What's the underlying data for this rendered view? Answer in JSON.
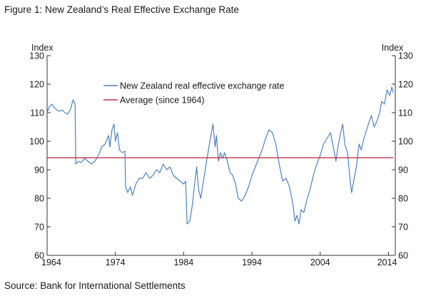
{
  "figure_title": "Figure 1: New Zealand’s Real Effective Exchange Rate",
  "source": "Source: Bank for International Settlements",
  "colors": {
    "series": "#4f81bd",
    "average": "#c0344a",
    "axis": "#333333"
  },
  "chart_data": {
    "type": "line",
    "title": "Figure 1: New Zealand’s Real Effective Exchange Rate",
    "left_axis_label": "Index",
    "right_axis_label": "Index",
    "xlim": [
      1964,
      2015
    ],
    "ylim": [
      60,
      130
    ],
    "yticks": [
      60,
      70,
      80,
      90,
      100,
      110,
      120,
      130
    ],
    "xticks": [
      1964,
      1974,
      1984,
      1994,
      2004,
      2014
    ],
    "grid": false,
    "legend_position": "top-center",
    "series": [
      {
        "name": "New Zealand real effective exchange rate",
        "points": [
          [
            1964.0,
            110
          ],
          [
            1964.3,
            112
          ],
          [
            1964.7,
            113
          ],
          [
            1965.0,
            112
          ],
          [
            1965.4,
            111
          ],
          [
            1965.8,
            110.5
          ],
          [
            1966.2,
            111
          ],
          [
            1966.6,
            110
          ],
          [
            1967.0,
            109.5
          ],
          [
            1967.4,
            111
          ],
          [
            1967.8,
            114.5
          ],
          [
            1968.1,
            113
          ],
          [
            1968.2,
            92
          ],
          [
            1968.6,
            93
          ],
          [
            1969.0,
            92.5
          ],
          [
            1969.5,
            94
          ],
          [
            1970.0,
            93
          ],
          [
            1970.5,
            92
          ],
          [
            1971.0,
            93
          ],
          [
            1971.5,
            95
          ],
          [
            1972.0,
            98
          ],
          [
            1972.5,
            99
          ],
          [
            1973.0,
            102
          ],
          [
            1973.2,
            98
          ],
          [
            1973.5,
            104
          ],
          [
            1973.8,
            106
          ],
          [
            1974.0,
            100
          ],
          [
            1974.3,
            103
          ],
          [
            1974.6,
            97
          ],
          [
            1975.0,
            96
          ],
          [
            1975.4,
            96.5
          ],
          [
            1975.5,
            84
          ],
          [
            1975.8,
            82
          ],
          [
            1976.2,
            84
          ],
          [
            1976.5,
            81
          ],
          [
            1977.0,
            85
          ],
          [
            1977.5,
            87
          ],
          [
            1978.0,
            87
          ],
          [
            1978.5,
            89
          ],
          [
            1979.0,
            87
          ],
          [
            1979.5,
            88
          ],
          [
            1980.0,
            90
          ],
          [
            1980.5,
            89
          ],
          [
            1981.0,
            92
          ],
          [
            1981.5,
            90
          ],
          [
            1982.0,
            91
          ],
          [
            1982.5,
            88
          ],
          [
            1983.0,
            87
          ],
          [
            1983.5,
            86
          ],
          [
            1984.0,
            85
          ],
          [
            1984.3,
            86
          ],
          [
            1984.5,
            71
          ],
          [
            1984.9,
            72
          ],
          [
            1985.3,
            78
          ],
          [
            1985.6,
            85
          ],
          [
            1985.9,
            91
          ],
          [
            1986.2,
            83
          ],
          [
            1986.5,
            80
          ],
          [
            1986.9,
            86
          ],
          [
            1987.3,
            92
          ],
          [
            1987.7,
            98
          ],
          [
            1988.0,
            102
          ],
          [
            1988.3,
            106
          ],
          [
            1988.6,
            98
          ],
          [
            1988.8,
            102
          ],
          [
            1989.1,
            93
          ],
          [
            1989.4,
            96
          ],
          [
            1989.7,
            94
          ],
          [
            1990.0,
            96
          ],
          [
            1990.4,
            93
          ],
          [
            1990.8,
            89
          ],
          [
            1991.2,
            88
          ],
          [
            1991.6,
            85
          ],
          [
            1992.0,
            80
          ],
          [
            1992.5,
            79
          ],
          [
            1993.0,
            81
          ],
          [
            1993.5,
            84
          ],
          [
            1994.0,
            88
          ],
          [
            1994.5,
            91
          ],
          [
            1995.0,
            94
          ],
          [
            1995.5,
            97
          ],
          [
            1996.0,
            101
          ],
          [
            1996.5,
            104
          ],
          [
            1997.0,
            103
          ],
          [
            1997.5,
            99
          ],
          [
            1998.0,
            92
          ],
          [
            1998.5,
            86
          ],
          [
            1999.0,
            87
          ],
          [
            1999.5,
            84
          ],
          [
            2000.0,
            78
          ],
          [
            2000.3,
            72
          ],
          [
            2000.6,
            74
          ],
          [
            2000.9,
            71
          ],
          [
            2001.2,
            76
          ],
          [
            2001.6,
            75
          ],
          [
            2002.0,
            79
          ],
          [
            2002.5,
            83
          ],
          [
            2003.0,
            88
          ],
          [
            2003.5,
            92
          ],
          [
            2004.0,
            95
          ],
          [
            2004.5,
            99
          ],
          [
            2005.0,
            101
          ],
          [
            2005.5,
            103
          ],
          [
            2006.0,
            97
          ],
          [
            2006.3,
            93
          ],
          [
            2006.6,
            98
          ],
          [
            2007.0,
            103
          ],
          [
            2007.3,
            106
          ],
          [
            2007.6,
            99
          ],
          [
            2008.0,
            96
          ],
          [
            2008.4,
            86
          ],
          [
            2008.6,
            82
          ],
          [
            2008.9,
            86
          ],
          [
            2009.3,
            91
          ],
          [
            2009.7,
            99
          ],
          [
            2010.0,
            97
          ],
          [
            2010.4,
            101
          ],
          [
            2010.8,
            104
          ],
          [
            2011.2,
            107
          ],
          [
            2011.5,
            109
          ],
          [
            2011.9,
            105
          ],
          [
            2012.3,
            107
          ],
          [
            2012.7,
            110
          ],
          [
            2013.0,
            114
          ],
          [
            2013.4,
            113
          ],
          [
            2013.8,
            118
          ],
          [
            2014.2,
            116
          ],
          [
            2014.5,
            119
          ],
          [
            2014.7,
            117
          ]
        ]
      },
      {
        "name": "Average (since 1964)",
        "points": [
          [
            1964,
            94.2
          ],
          [
            2014.7,
            94.2
          ]
        ]
      }
    ]
  }
}
